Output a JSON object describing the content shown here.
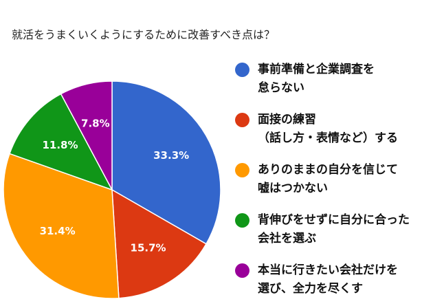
{
  "chart_data": {
    "type": "pie",
    "title": "就活をうまくいくようにするために改善すべき点は？",
    "slices": [
      {
        "label": "事前準備と企業調査を\n怠らない",
        "value": 33.3,
        "display": "33.3%",
        "color": "#3366cc"
      },
      {
        "label": "面接の練習\n（話し方・表情など）する",
        "value": 15.7,
        "display": "15.7%",
        "color": "#dc3912"
      },
      {
        "label": "ありのままの自分を信じて\n嘘はつかない",
        "value": 31.4,
        "display": "31.4%",
        "color": "#ff9900"
      },
      {
        "label": "背伸びをせずに自分に合った\n会社を選ぶ",
        "value": 11.8,
        "display": "11.8%",
        "color": "#109618"
      },
      {
        "label": "本当に行きたい会社だけを\n選び、全力を尽くす",
        "value": 7.8,
        "display": "7.8%",
        "color": "#990099"
      }
    ],
    "legend_position": "right"
  }
}
